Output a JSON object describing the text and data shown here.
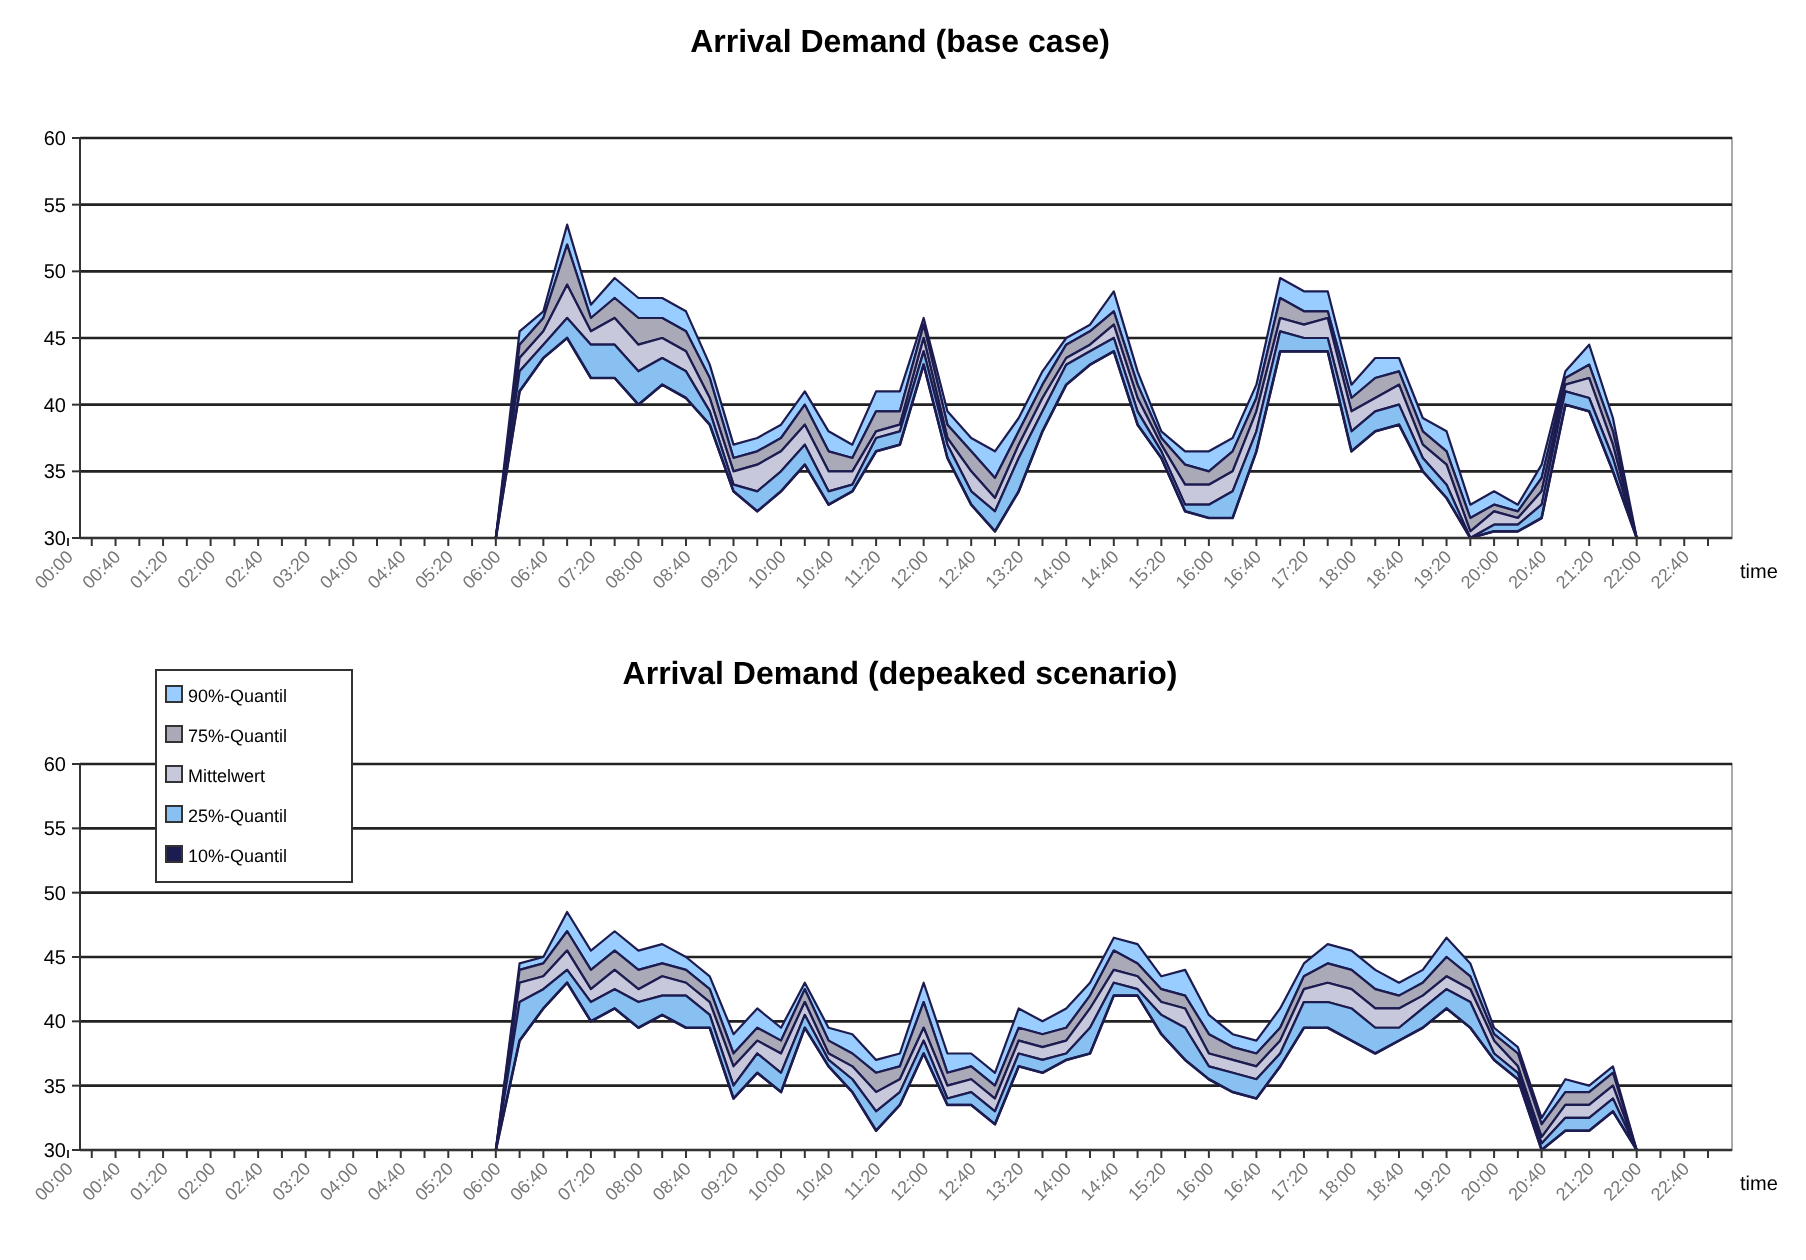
{
  "chart_data": [
    {
      "type": "area",
      "title": "Arrival Demand (base case)",
      "xlabel": "time",
      "categories": [
        "00:00",
        null,
        "00:40",
        null,
        "01:20",
        null,
        "02:00",
        null,
        "02:40",
        null,
        "03:20",
        null,
        "04:00",
        null,
        "04:40",
        null,
        "05:20",
        null,
        "06:00",
        null,
        "06:40",
        null,
        "07:20",
        null,
        "08:00",
        null,
        "08:40",
        null,
        "09:20",
        null,
        "10:00",
        null,
        "10:40",
        null,
        "11:20",
        null,
        "12:00",
        null,
        "12:40",
        null,
        "13:20",
        null,
        "14:00",
        null,
        "14:40",
        null,
        "15:20",
        null,
        "16:00",
        null,
        "16:40",
        null,
        "17:20",
        null,
        "18:00",
        null,
        "18:40",
        null,
        "19:20",
        null,
        "20:00",
        null,
        "20:40",
        null,
        "21:20",
        null,
        "22:00",
        null,
        "22:40",
        null
      ],
      "ylim": [
        30,
        60
      ],
      "yticks": [
        30,
        35,
        40,
        45,
        50,
        55,
        60
      ],
      "grid": "y",
      "legend": false,
      "series": [
        {
          "color": "#99ccff",
          "values": [
            null,
            null,
            null,
            null,
            null,
            null,
            null,
            null,
            null,
            null,
            null,
            null,
            null,
            null,
            null,
            null,
            null,
            null,
            30,
            45.5,
            47,
            53.5,
            47.5,
            49.5,
            48,
            48,
            47,
            43,
            37,
            37.5,
            38.5,
            41,
            38,
            37,
            41,
            41,
            46.5,
            39.5,
            37.5,
            36.5,
            39,
            42.5,
            45,
            46,
            48.5,
            42.5,
            38,
            36.5,
            36.5,
            37.5,
            41.5,
            49.5,
            48.5,
            48.5,
            41.5,
            43.5,
            43.5,
            39,
            38,
            32.5,
            33.5,
            32.5,
            35.5,
            42.5,
            44.5,
            39,
            30,
            null,
            null,
            null
          ]
        },
        {
          "color": "#a9a9b8",
          "values": [
            null,
            null,
            null,
            null,
            null,
            null,
            null,
            null,
            null,
            null,
            null,
            null,
            null,
            null,
            null,
            null,
            null,
            null,
            30,
            44.5,
            46.5,
            52,
            46.5,
            48,
            46.5,
            46.5,
            45.5,
            42,
            36,
            36.5,
            37.5,
            40,
            36.5,
            36,
            39.5,
            39.5,
            46,
            38.5,
            36.5,
            34.5,
            38,
            41.5,
            44.5,
            45.5,
            47,
            41.5,
            37.5,
            35.5,
            35,
            36.5,
            40.5,
            48,
            47,
            47,
            40.5,
            42,
            42.5,
            38,
            36.5,
            31.5,
            32.5,
            32,
            34.5,
            42,
            43,
            38,
            30,
            null,
            null,
            null
          ]
        },
        {
          "color": "#c8c8dc",
          "values": [
            null,
            null,
            null,
            null,
            null,
            null,
            null,
            null,
            null,
            null,
            null,
            null,
            null,
            null,
            null,
            null,
            null,
            null,
            30,
            43.5,
            45.5,
            49,
            45.5,
            46.5,
            44.5,
            45,
            44,
            40.5,
            35,
            35.5,
            36.5,
            38.5,
            35,
            35,
            38,
            38.5,
            45,
            37.5,
            35,
            33,
            37,
            40.5,
            43.5,
            44.5,
            46,
            40.5,
            37,
            34,
            34,
            35,
            39.5,
            46.5,
            46,
            46.5,
            39.5,
            40.5,
            41.5,
            37,
            35.5,
            30.5,
            32,
            31.5,
            33.5,
            41.5,
            42,
            37,
            30,
            null,
            null,
            null
          ]
        },
        {
          "color": "#88c0f2",
          "values": [
            null,
            null,
            null,
            null,
            null,
            null,
            null,
            null,
            null,
            null,
            null,
            null,
            null,
            null,
            null,
            null,
            null,
            null,
            30,
            42.5,
            44.5,
            46.5,
            44.5,
            44.5,
            42.5,
            43.5,
            42.5,
            39.5,
            34,
            33.5,
            35,
            37,
            33.5,
            34,
            37.5,
            38,
            44,
            37,
            33.5,
            32,
            36,
            39.5,
            43,
            44,
            45,
            39.5,
            36.5,
            32.5,
            32.5,
            33.5,
            38,
            45.5,
            45,
            45,
            38,
            39.5,
            40,
            36,
            34,
            30,
            31,
            31,
            32.5,
            41,
            40.5,
            36,
            30,
            null,
            null,
            null
          ]
        },
        {
          "type": "line",
          "color": "#1c1c50",
          "values": [
            null,
            null,
            null,
            null,
            null,
            null,
            null,
            null,
            null,
            null,
            null,
            null,
            null,
            null,
            null,
            null,
            null,
            null,
            30,
            41,
            43.5,
            45,
            42,
            42,
            40,
            41.5,
            40.5,
            38.5,
            33.5,
            32,
            33.5,
            35.5,
            32.5,
            33.5,
            36.5,
            37,
            43,
            36,
            32.5,
            30.5,
            33.5,
            38,
            41.5,
            43,
            44,
            38.5,
            36,
            32,
            31.5,
            31.5,
            36.5,
            44,
            44,
            44,
            36.5,
            38,
            38.5,
            35,
            33,
            30,
            30.5,
            30.5,
            31.5,
            40,
            39.5,
            35,
            30,
            null,
            null,
            null
          ]
        }
      ]
    },
    {
      "type": "area",
      "title": "Arrival Demand (depeaked scenario)",
      "xlabel": "time",
      "categories": [
        "00:00",
        null,
        "00:40",
        null,
        "01:20",
        null,
        "02:00",
        null,
        "02:40",
        null,
        "03:20",
        null,
        "04:00",
        null,
        "04:40",
        null,
        "05:20",
        null,
        "06:00",
        null,
        "06:40",
        null,
        "07:20",
        null,
        "08:00",
        null,
        "08:40",
        null,
        "09:20",
        null,
        "10:00",
        null,
        "10:40",
        null,
        "11:20",
        null,
        "12:00",
        null,
        "12:40",
        null,
        "13:20",
        null,
        "14:00",
        null,
        "14:40",
        null,
        "15:20",
        null,
        "16:00",
        null,
        "16:40",
        null,
        "17:20",
        null,
        "18:00",
        null,
        "18:40",
        null,
        "19:20",
        null,
        "20:00",
        null,
        "20:40",
        null,
        "21:20",
        null,
        "22:00",
        null,
        "22:40",
        null
      ],
      "ylim": [
        30,
        60
      ],
      "yticks": [
        30,
        35,
        40,
        45,
        50,
        55,
        60
      ],
      "grid": "y",
      "legend": "top left",
      "series": [
        {
          "name": "90%-Quantil",
          "color": "#99ccff",
          "values": [
            null,
            null,
            null,
            null,
            null,
            null,
            null,
            null,
            null,
            null,
            null,
            null,
            null,
            null,
            null,
            null,
            null,
            null,
            30,
            44.5,
            45,
            48.5,
            45.5,
            47,
            45.5,
            46,
            45,
            43.5,
            39,
            41,
            39.5,
            43,
            39.5,
            39,
            37,
            37.5,
            43,
            37.5,
            37.5,
            36,
            41,
            40,
            41,
            43,
            46.5,
            46,
            43.5,
            44,
            40.5,
            39,
            38.5,
            41,
            44.5,
            46,
            45.5,
            44,
            43,
            44,
            46.5,
            44.5,
            39.5,
            38,
            32.5,
            35.5,
            35,
            36.5,
            30,
            null,
            null,
            null
          ]
        },
        {
          "name": "75%-Quantil",
          "color": "#a9a9b8",
          "values": [
            null,
            null,
            null,
            null,
            null,
            null,
            null,
            null,
            null,
            null,
            null,
            null,
            null,
            null,
            null,
            null,
            null,
            null,
            30,
            44,
            44.5,
            47,
            44,
            45.5,
            44,
            44.5,
            44,
            42.5,
            37.5,
            39.5,
            38.5,
            42.5,
            38.5,
            37.5,
            36,
            36.5,
            41.5,
            36,
            36.5,
            35,
            39.5,
            39,
            39.5,
            42,
            45.5,
            44.5,
            42.5,
            42,
            39,
            38,
            37.5,
            39.5,
            43.5,
            44.5,
            44,
            42.5,
            42,
            43,
            45,
            43.5,
            39,
            37.5,
            32,
            34.5,
            34.5,
            36,
            30,
            null,
            null,
            null
          ]
        },
        {
          "name": "Mittelwert",
          "color": "#c8c8dc",
          "values": [
            null,
            null,
            null,
            null,
            null,
            null,
            null,
            null,
            null,
            null,
            null,
            null,
            null,
            null,
            null,
            null,
            null,
            null,
            30,
            43,
            43.5,
            45.5,
            42.5,
            44,
            42.5,
            43.5,
            43,
            41.5,
            36.5,
            38.5,
            37.5,
            41.5,
            37.5,
            36.5,
            34.5,
            35.5,
            39.5,
            35,
            35.5,
            34,
            38.5,
            38,
            38.5,
            41,
            44,
            43.5,
            41.5,
            41,
            37.5,
            37,
            36.5,
            38.5,
            42.5,
            43,
            42.5,
            41,
            41,
            42,
            43.5,
            42.5,
            38.5,
            36.5,
            31,
            33.5,
            33.5,
            35,
            30,
            null,
            null,
            null
          ]
        },
        {
          "name": "25%-Quantil",
          "color": "#88c0f2",
          "values": [
            null,
            null,
            null,
            null,
            null,
            null,
            null,
            null,
            null,
            null,
            null,
            null,
            null,
            null,
            null,
            null,
            null,
            null,
            30,
            41.5,
            42.5,
            44,
            41.5,
            42.5,
            41.5,
            42,
            42,
            40.5,
            35,
            37.5,
            36,
            40.5,
            37,
            35.5,
            33,
            34.5,
            38.5,
            34,
            34.5,
            33,
            37.5,
            37,
            37.5,
            39.5,
            43,
            42.5,
            40.5,
            39.5,
            36.5,
            36,
            35.5,
            37.5,
            41.5,
            41.5,
            41,
            39.5,
            39.5,
            41,
            42.5,
            41.5,
            37.5,
            36,
            30.5,
            32.5,
            32.5,
            34,
            30,
            null,
            null,
            null
          ]
        },
        {
          "name": "10%-Quantil",
          "type": "line",
          "color": "#1c1c50",
          "values": [
            null,
            null,
            null,
            null,
            null,
            null,
            null,
            null,
            null,
            null,
            null,
            null,
            null,
            null,
            null,
            null,
            null,
            null,
            30,
            38.5,
            41,
            43,
            40,
            41,
            39.5,
            40.5,
            39.5,
            39.5,
            34,
            36,
            34.5,
            39.5,
            36.5,
            34.5,
            31.5,
            33.5,
            37.5,
            33.5,
            33.5,
            32,
            36.5,
            36,
            37,
            37.5,
            42,
            42,
            39,
            37,
            35.5,
            34.5,
            34,
            36.5,
            39.5,
            39.5,
            38.5,
            37.5,
            38.5,
            39.5,
            41,
            39.5,
            37,
            35.5,
            30,
            31.5,
            31.5,
            33,
            30,
            null,
            null,
            null
          ]
        }
      ]
    }
  ]
}
